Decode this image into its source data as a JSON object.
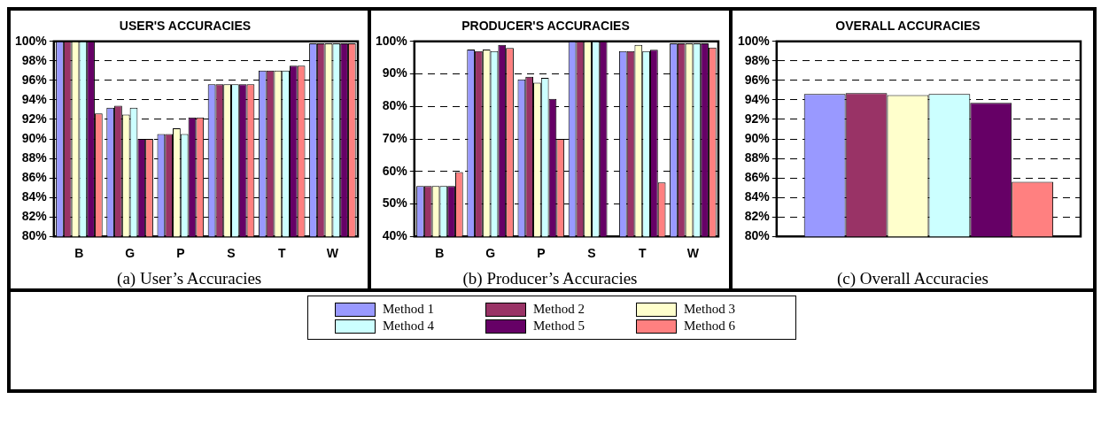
{
  "chart_data": [
    {
      "type": "bar",
      "title": "USER'S ACCURACIES",
      "categories": [
        "B",
        "G",
        "P",
        "S",
        "T",
        "W"
      ],
      "series": [
        {
          "color": "#9999ff",
          "values": [
            100,
            93.2,
            90.5,
            95.6,
            97.0,
            99.8
          ]
        },
        {
          "color": "#993366",
          "values": [
            100,
            93.4,
            90.5,
            95.6,
            97.0,
            99.8
          ]
        },
        {
          "color": "#ffffcc",
          "values": [
            100,
            92.5,
            91.1,
            95.6,
            97.0,
            99.8
          ]
        },
        {
          "color": "#ccffff",
          "values": [
            100,
            93.2,
            90.5,
            95.6,
            97.0,
            99.8
          ]
        },
        {
          "color": "#660066",
          "values": [
            100,
            90.0,
            92.2,
            95.6,
            97.5,
            99.8
          ]
        },
        {
          "color": "#ff8080",
          "values": [
            92.6,
            90.0,
            92.2,
            95.6,
            97.5,
            99.8
          ]
        }
      ],
      "ylim": [
        80,
        100
      ],
      "yticks": [
        {
          "value": 80,
          "label": "80%"
        },
        {
          "value": 82,
          "label": "82%"
        },
        {
          "value": 84,
          "label": "84%"
        },
        {
          "value": 86,
          "label": "86%"
        },
        {
          "value": 88,
          "label": "88%"
        },
        {
          "value": 90,
          "label": "90%"
        },
        {
          "value": 92,
          "label": "92%"
        },
        {
          "value": 94,
          "label": "94%"
        },
        {
          "value": 96,
          "label": "96%"
        },
        {
          "value": 98,
          "label": "98%"
        },
        {
          "value": 100,
          "label": "100%"
        }
      ],
      "grid": "y",
      "annotations": [
        "(a) User’s Accuracies"
      ]
    },
    {
      "type": "bar",
      "title": "PRODUCER'S ACCURACIES",
      "categories": [
        "B",
        "G",
        "P",
        "S",
        "T",
        "W"
      ],
      "series": [
        {
          "name": "Method 1",
          "color": "#9999ff",
          "values": [
            55.5,
            97.5,
            88.3,
            100,
            97.0,
            99.4
          ]
        },
        {
          "name": "Method 2",
          "color": "#993366",
          "values": [
            55.5,
            97.0,
            89.1,
            100,
            97.0,
            99.4
          ]
        },
        {
          "name": "Method 3",
          "color": "#ffffcc",
          "values": [
            55.5,
            97.5,
            87.3,
            100,
            98.9,
            99.4
          ]
        },
        {
          "name": "Method 4",
          "color": "#ccffff",
          "values": [
            55.5,
            97.0,
            88.8,
            100,
            97.0,
            99.4
          ]
        },
        {
          "name": "Method 5",
          "color": "#660066",
          "values": [
            55.5,
            98.9,
            82.3,
            100,
            97.4,
            99.4
          ]
        },
        {
          "name": "Method 6",
          "color": "#ff8080",
          "values": [
            59.8,
            98.0,
            70.0,
            null,
            56.6,
            98.1
          ]
        }
      ],
      "ylim": [
        40,
        100
      ],
      "yticks": [
        {
          "value": 40,
          "label": "40%"
        },
        {
          "value": 50,
          "label": "50%"
        },
        {
          "value": 60,
          "label": "60%"
        },
        {
          "value": 70,
          "label": "70%"
        },
        {
          "value": 80,
          "label": "80%"
        },
        {
          "value": 90,
          "label": "90%"
        },
        {
          "value": 100,
          "label": "100%"
        }
      ],
      "grid": "y",
      "legend": "bottom",
      "annotations": [
        "(b) Producer’s Accuracies"
      ]
    },
    {
      "type": "bar",
      "title": "OVERALL ACCURACIES",
      "categories": [
        null
      ],
      "series": [
        {
          "color": "#9999ff",
          "values": [
            94.6
          ]
        },
        {
          "color": "#993366",
          "values": [
            94.7
          ]
        },
        {
          "color": "#ffffcc",
          "values": [
            94.5
          ]
        },
        {
          "color": "#ccffff",
          "values": [
            94.6
          ]
        },
        {
          "color": "#660066",
          "values": [
            93.7
          ]
        },
        {
          "color": "#ff8080",
          "values": [
            85.6
          ]
        }
      ],
      "ylim": [
        80,
        100
      ],
      "yticks": [
        {
          "value": 80,
          "label": "80%"
        },
        {
          "value": 82,
          "label": "82%"
        },
        {
          "value": 84,
          "label": "84%"
        },
        {
          "value": 86,
          "label": "86%"
        },
        {
          "value": 88,
          "label": "88%"
        },
        {
          "value": 90,
          "label": "90%"
        },
        {
          "value": 92,
          "label": "92%"
        },
        {
          "value": 94,
          "label": "94%"
        },
        {
          "value": 96,
          "label": "96%"
        },
        {
          "value": 98,
          "label": "98%"
        },
        {
          "value": 100,
          "label": "100%"
        }
      ],
      "grid": "y",
      "annotations": [
        "(c) Overall Accuracies"
      ]
    }
  ]
}
